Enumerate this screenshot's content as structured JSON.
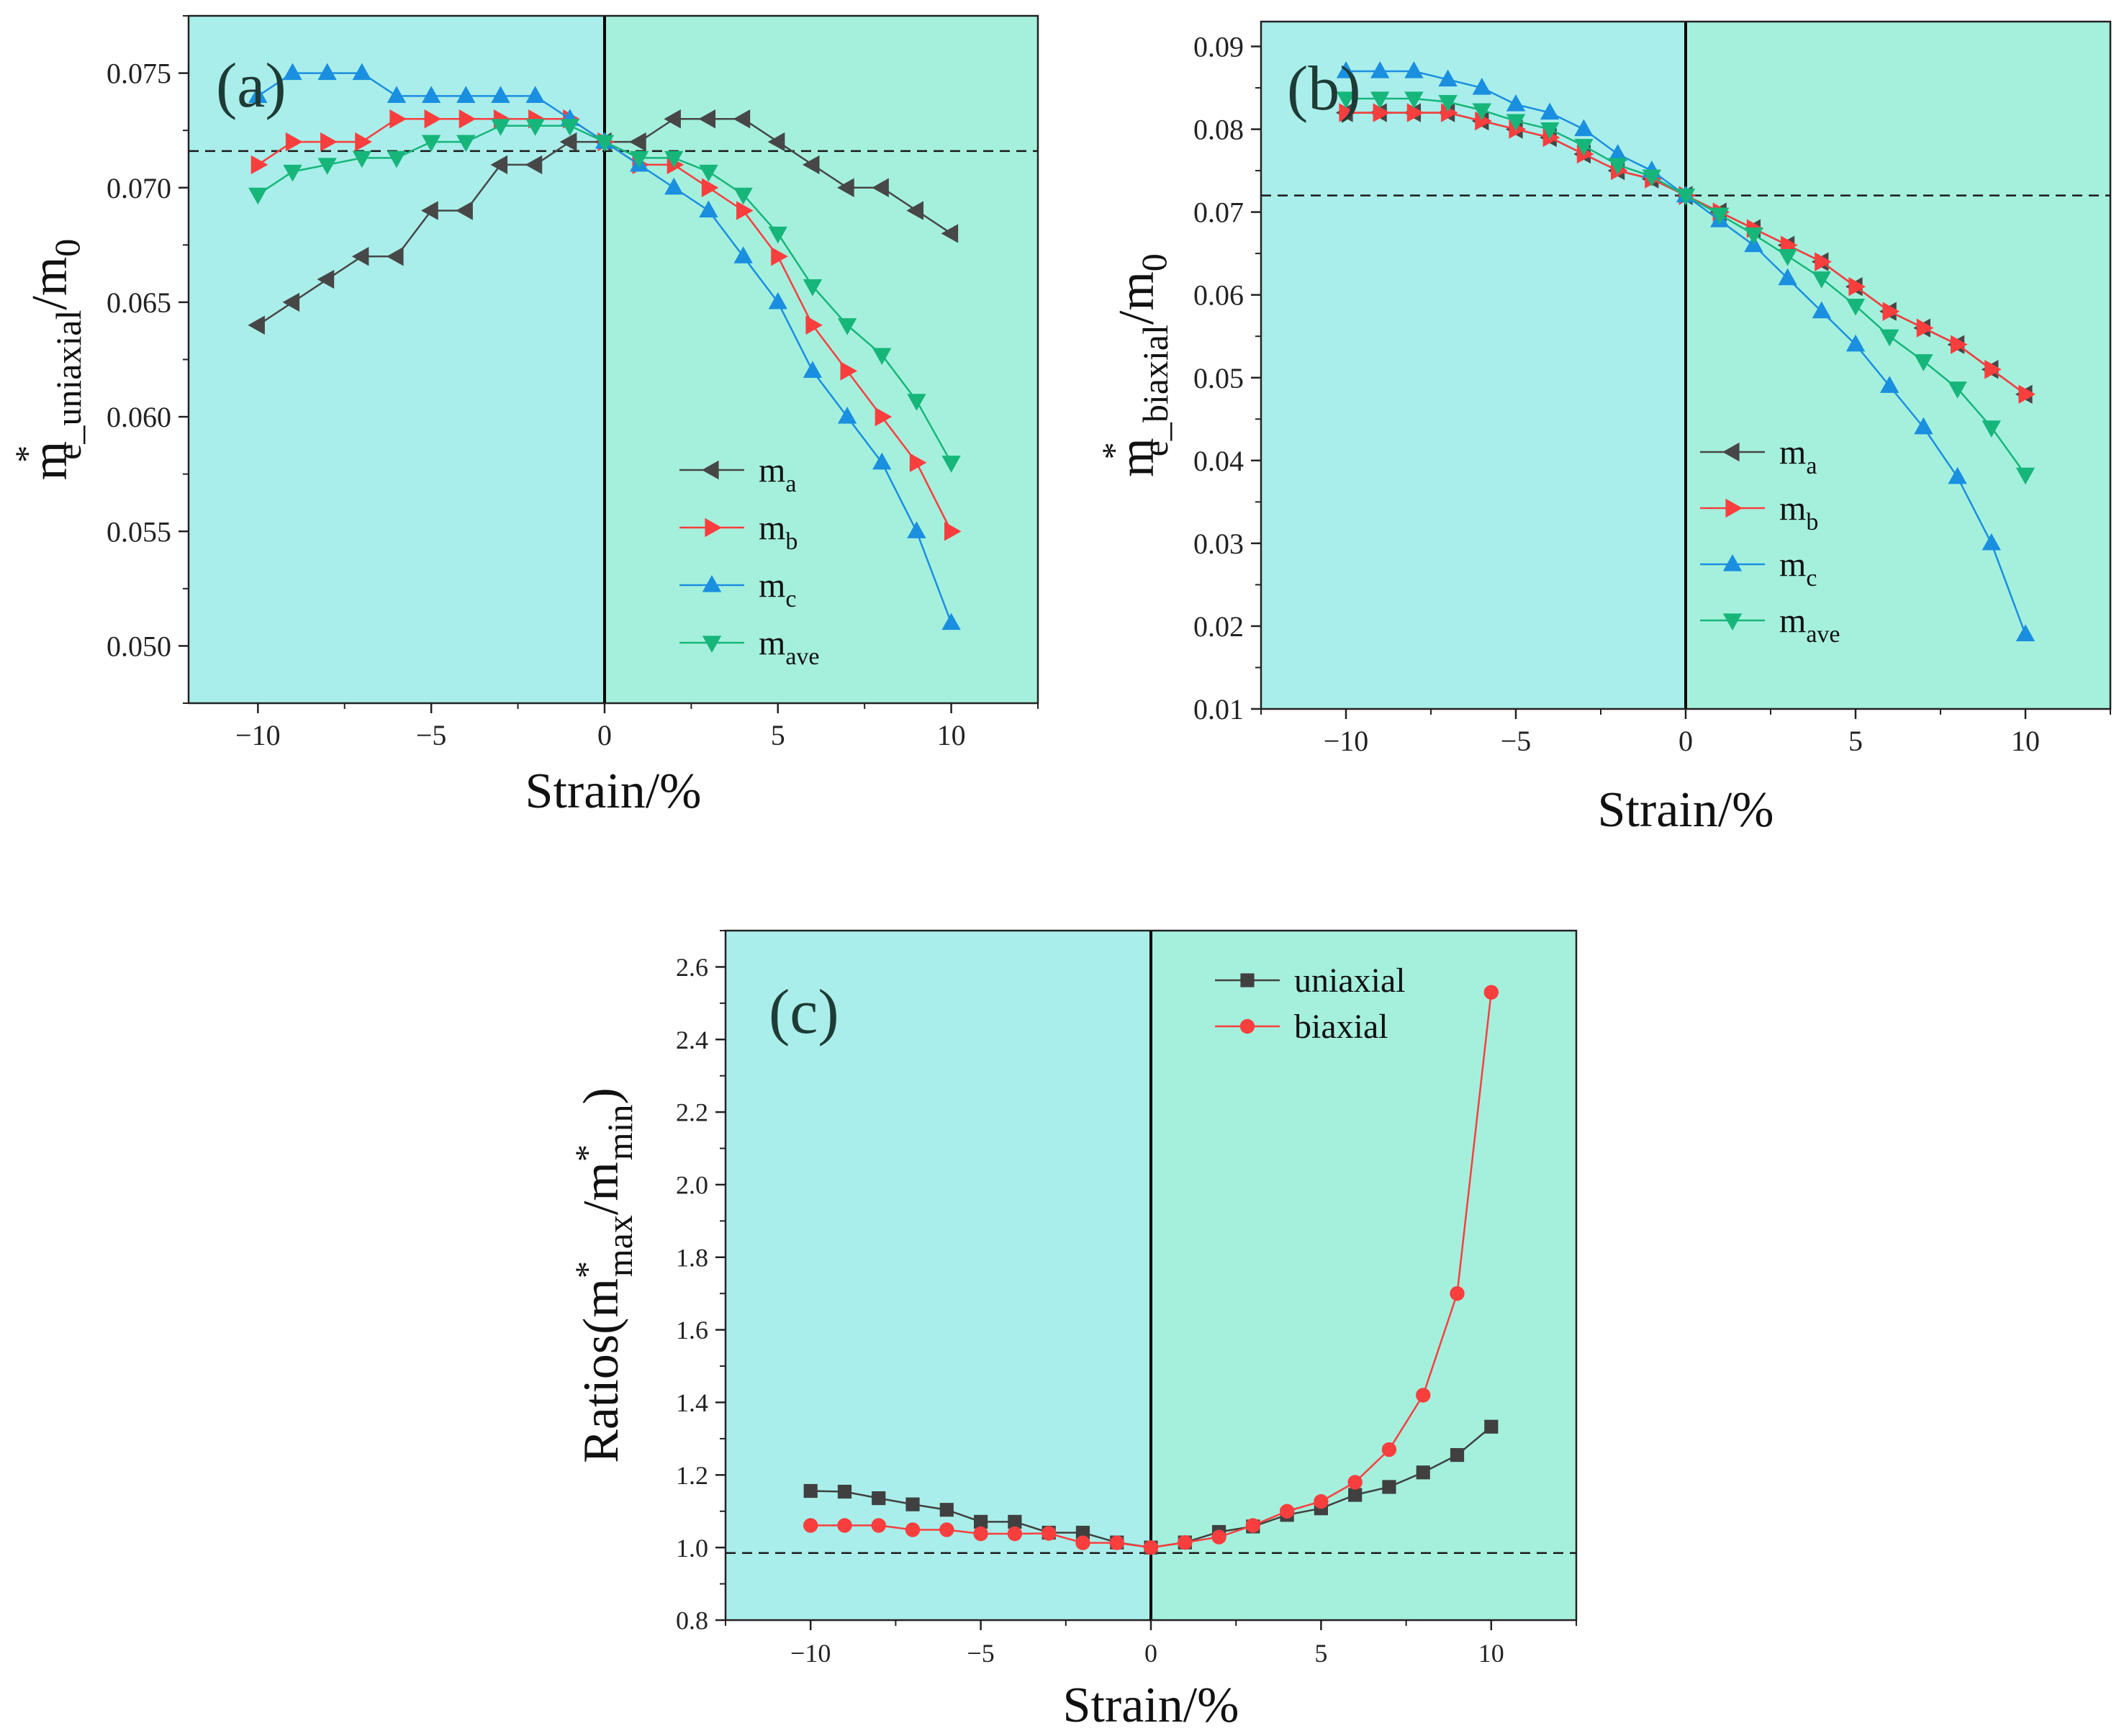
{
  "colors": {
    "bg_negative": "#a9eeea",
    "bg_positive": "#a5f0dd",
    "ma": "#474747",
    "mb": "#f93e3e",
    "mc": "#1a8fe0",
    "mave": "#16b67a",
    "uniaxial": "#404040",
    "biaxial": "#f93e3e"
  },
  "chart_data": [
    {
      "id": "a",
      "type": "line",
      "panel_label": "(a)",
      "xlabel": "Strain/%",
      "ylabel": {
        "base": "m",
        "sup": "*",
        "sub": "e_uniaxial",
        "tail": "/m",
        "tail_sub": "0"
      },
      "xlim": [
        -12,
        12.5
      ],
      "ylim": [
        0.0475,
        0.0775
      ],
      "xticks": [
        -10,
        -5,
        0,
        5,
        10
      ],
      "xtick_labels": [
        "−10",
        "−5",
        "0",
        "5",
        "10"
      ],
      "yticks": [
        0.05,
        0.055,
        0.06,
        0.065,
        0.07,
        0.075
      ],
      "ytick_labels": [
        "0.050",
        "0.055",
        "0.060",
        "0.065",
        "0.070",
        "0.075"
      ],
      "hline": 0.0716,
      "vline": 0,
      "legend_position": "right-middle",
      "x": [
        -10,
        -9,
        -8,
        -7,
        -6,
        -5,
        -4,
        -3,
        -2,
        -1,
        0,
        1,
        2,
        3,
        4,
        5,
        6,
        7,
        8,
        9,
        10
      ],
      "series": [
        {
          "key": "ma",
          "name": "m",
          "sub": "a",
          "marker": "tri-left",
          "values": [
            0.064,
            0.065,
            0.066,
            0.067,
            0.067,
            0.069,
            0.069,
            0.071,
            0.071,
            0.072,
            0.072,
            0.072,
            0.073,
            0.073,
            0.073,
            0.072,
            0.071,
            0.07,
            0.07,
            0.069,
            0.068
          ]
        },
        {
          "key": "mb",
          "name": "m",
          "sub": "b",
          "marker": "tri-right",
          "values": [
            0.071,
            0.072,
            0.072,
            0.072,
            0.073,
            0.073,
            0.073,
            0.073,
            0.073,
            0.073,
            0.072,
            0.071,
            0.071,
            0.07,
            0.069,
            0.067,
            0.064,
            0.062,
            0.06,
            0.058,
            0.055
          ]
        },
        {
          "key": "mc",
          "name": "m",
          "sub": "c",
          "marker": "tri-up",
          "values": [
            0.074,
            0.075,
            0.075,
            0.075,
            0.074,
            0.074,
            0.074,
            0.074,
            0.074,
            0.073,
            0.072,
            0.071,
            0.07,
            0.069,
            0.067,
            0.065,
            0.062,
            0.06,
            0.058,
            0.055,
            0.051
          ]
        },
        {
          "key": "mave",
          "name": "m",
          "sub": "ave",
          "marker": "tri-down",
          "values": [
            0.0697,
            0.0707,
            0.071,
            0.0713,
            0.0713,
            0.072,
            0.072,
            0.0727,
            0.0727,
            0.0727,
            0.072,
            0.0713,
            0.0713,
            0.0707,
            0.0697,
            0.068,
            0.0657,
            0.064,
            0.0627,
            0.0607,
            0.058
          ]
        }
      ]
    },
    {
      "id": "b",
      "type": "line",
      "panel_label": "(b)",
      "xlabel": "Strain/%",
      "ylabel": {
        "base": "m",
        "sup": "*",
        "sub": "e_biaxial",
        "tail": "/m",
        "tail_sub": "0"
      },
      "xlim": [
        -12.5,
        12.5
      ],
      "ylim": [
        0.01,
        0.093
      ],
      "xticks": [
        -10,
        -5,
        0,
        5,
        10
      ],
      "xtick_labels": [
        "−10",
        "−5",
        "0",
        "5",
        "10"
      ],
      "yticks": [
        0.01,
        0.02,
        0.03,
        0.04,
        0.05,
        0.06,
        0.07,
        0.08,
        0.09
      ],
      "ytick_labels": [
        "0.01",
        "0.02",
        "0.03",
        "0.04",
        "0.05",
        "0.06",
        "0.07",
        "0.08",
        "0.09"
      ],
      "hline": 0.072,
      "vline": 0,
      "legend_position": "right-middle",
      "x": [
        -10,
        -9,
        -8,
        -7,
        -6,
        -5,
        -4,
        -3,
        -2,
        -1,
        0,
        1,
        2,
        3,
        4,
        5,
        6,
        7,
        8,
        9,
        10
      ],
      "series": [
        {
          "key": "ma",
          "name": "m",
          "sub": "a",
          "marker": "tri-left",
          "values": [
            0.082,
            0.082,
            0.082,
            0.082,
            0.081,
            0.08,
            0.079,
            0.077,
            0.075,
            0.074,
            0.072,
            0.07,
            0.068,
            0.066,
            0.064,
            0.061,
            0.058,
            0.056,
            0.054,
            0.051,
            0.048
          ]
        },
        {
          "key": "mb",
          "name": "m",
          "sub": "b",
          "marker": "tri-right",
          "values": [
            0.082,
            0.082,
            0.082,
            0.082,
            0.081,
            0.08,
            0.079,
            0.077,
            0.075,
            0.074,
            0.072,
            0.07,
            0.068,
            0.066,
            0.064,
            0.061,
            0.058,
            0.056,
            0.054,
            0.051,
            0.048
          ]
        },
        {
          "key": "mc",
          "name": "m",
          "sub": "c",
          "marker": "tri-up",
          "values": [
            0.087,
            0.087,
            0.087,
            0.086,
            0.085,
            0.083,
            0.082,
            0.08,
            0.077,
            0.075,
            0.072,
            0.069,
            0.066,
            0.062,
            0.058,
            0.054,
            0.049,
            0.044,
            0.038,
            0.03,
            0.019
          ]
        },
        {
          "key": "mave",
          "name": "m",
          "sub": "ave",
          "marker": "tri-down",
          "values": [
            0.0837,
            0.0837,
            0.0837,
            0.0833,
            0.0823,
            0.081,
            0.08,
            0.078,
            0.0757,
            0.0743,
            0.072,
            0.0697,
            0.0673,
            0.0647,
            0.062,
            0.0587,
            0.055,
            0.052,
            0.0487,
            0.044,
            0.0383
          ]
        }
      ]
    },
    {
      "id": "c",
      "type": "line",
      "panel_label": "(c)",
      "xlabel": "Strain/%",
      "ylabel": {
        "base": "Ratios(m",
        "sup1": "*",
        "sub1": "max",
        "mid": "/m",
        "sup2": "*",
        "sub2": "min",
        "tail": ")"
      },
      "xlim": [
        -12.5,
        12.5
      ],
      "ylim": [
        0.8,
        2.7
      ],
      "xticks": [
        -10,
        -5,
        0,
        5,
        10
      ],
      "xtick_labels": [
        "−10",
        "−5",
        "0",
        "5",
        "10"
      ],
      "yticks": [
        0.8,
        1.0,
        1.2,
        1.4,
        1.6,
        1.8,
        2.0,
        2.2,
        2.4,
        2.6
      ],
      "ytick_labels": [
        "0.8",
        "1.0",
        "1.2",
        "1.4",
        "1.6",
        "1.8",
        "2.0",
        "2.2",
        "2.4",
        "2.6"
      ],
      "hline": 0.985,
      "vline": 0,
      "legend_position": "top-right",
      "x": [
        -10,
        -9,
        -8,
        -7,
        -6,
        -5,
        -4,
        -3,
        -2,
        -1,
        0,
        1,
        2,
        3,
        4,
        5,
        6,
        7,
        8,
        9,
        10
      ],
      "series": [
        {
          "key": "uniaxial",
          "name": "uniaxial",
          "marker": "square",
          "values": [
            1.156,
            1.154,
            1.136,
            1.119,
            1.104,
            1.071,
            1.071,
            1.041,
            1.041,
            1.014,
            1.0,
            1.014,
            1.043,
            1.058,
            1.09,
            1.108,
            1.145,
            1.167,
            1.207,
            1.255,
            1.333
          ]
        },
        {
          "key": "biaxial",
          "name": "biaxial",
          "marker": "circle",
          "values": [
            1.061,
            1.061,
            1.061,
            1.049,
            1.049,
            1.038,
            1.038,
            1.039,
            1.013,
            1.013,
            1.0,
            1.014,
            1.029,
            1.061,
            1.1,
            1.127,
            1.18,
            1.27,
            1.42,
            1.7,
            2.53
          ]
        }
      ]
    }
  ]
}
